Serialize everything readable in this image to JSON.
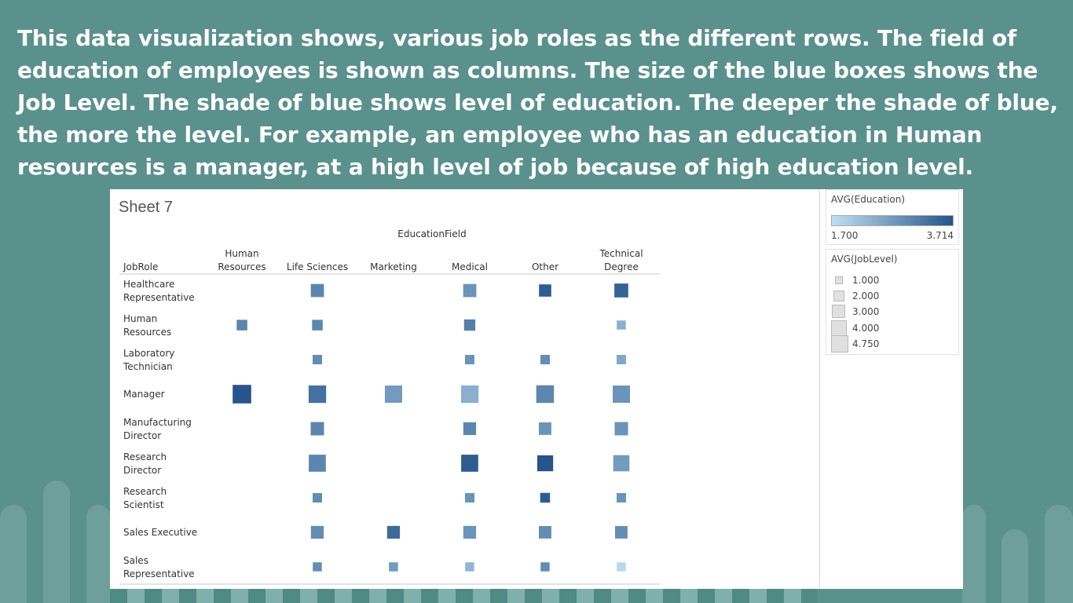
{
  "caption": "This data visualization shows, various job roles as the different rows. The field of education of employees is shown as columns. The size of the blue boxes shows the Job Level. The shade of blue shows level of education. The deeper the shade of blue, the more the level. For example, an employee who has an education in Human resources is a manager, at a high level of job because of high education level.",
  "sheet_title": "Sheet 7",
  "legend": {
    "color_title": "AVG(Education)",
    "color_min": "1.700",
    "color_max": "3.714",
    "color_min_hex": "#bfe0f3",
    "color_max_hex": "#26548a",
    "size_title": "AVG(JobLevel)",
    "size_items": [
      "1.000",
      "2.000",
      "3.000",
      "4.000",
      "4.750"
    ]
  },
  "chart_data": {
    "type": "heatmap",
    "title": "Sheet 7",
    "column_field": "EducationField",
    "row_field": "JobRole",
    "columns": [
      "Human Resources",
      "Life Sciences",
      "Marketing",
      "Medical",
      "Other",
      "Technical Degree"
    ],
    "column_labels": [
      [
        "Human",
        "Resources"
      ],
      [
        "Life Sciences"
      ],
      [
        "Marketing"
      ],
      [
        "Medical"
      ],
      [
        "Other"
      ],
      [
        "Technical",
        "Degree"
      ]
    ],
    "rows": [
      "Healthcare Representative",
      "Human Resources",
      "Laboratory Technician",
      "Manager",
      "Manufacturing Director",
      "Research Director",
      "Research Scientist",
      "Sales Executive",
      "Sales Representative"
    ],
    "row_labels": [
      [
        "Healthcare",
        "Representative"
      ],
      [
        "Human",
        "Resources"
      ],
      [
        "Laboratory",
        "Technician"
      ],
      [
        "Manager"
      ],
      [
        "Manufacturing",
        "Director"
      ],
      [
        "Research",
        "Director"
      ],
      [
        "Research",
        "Scientist"
      ],
      [
        "Sales Executive"
      ],
      [
        "Sales",
        "Representative"
      ]
    ],
    "size_measure": "AVG(JobLevel)",
    "color_measure": "AVG(Education)",
    "size_range": [
      1.0,
      4.75
    ],
    "color_range": [
      1.7,
      3.714
    ],
    "cells": [
      {
        "row": "Healthcare Representative",
        "col": "Life Sciences",
        "job_level": 2.3,
        "education": 3.0
      },
      {
        "row": "Healthcare Representative",
        "col": "Medical",
        "job_level": 2.3,
        "education": 2.8
      },
      {
        "row": "Healthcare Representative",
        "col": "Other",
        "job_level": 2.0,
        "education": 3.6
      },
      {
        "row": "Healthcare Representative",
        "col": "Technical Degree",
        "job_level": 2.6,
        "education": 3.5
      },
      {
        "row": "Human Resources",
        "col": "Human Resources",
        "job_level": 1.5,
        "education": 3.0
      },
      {
        "row": "Human Resources",
        "col": "Life Sciences",
        "job_level": 1.5,
        "education": 3.0
      },
      {
        "row": "Human Resources",
        "col": "Medical",
        "job_level": 1.7,
        "education": 3.1
      },
      {
        "row": "Human Resources",
        "col": "Technical Degree",
        "job_level": 1.1,
        "education": 2.4
      },
      {
        "row": "Laboratory Technician",
        "col": "Life Sciences",
        "job_level": 1.2,
        "education": 2.9
      },
      {
        "row": "Laboratory Technician",
        "col": "Medical",
        "job_level": 1.2,
        "education": 2.8
      },
      {
        "row": "Laboratory Technician",
        "col": "Other",
        "job_level": 1.2,
        "education": 2.9
      },
      {
        "row": "Laboratory Technician",
        "col": "Technical Degree",
        "job_level": 1.2,
        "education": 2.5
      },
      {
        "row": "Manager",
        "col": "Human Resources",
        "job_level": 4.6,
        "education": 3.7
      },
      {
        "row": "Manager",
        "col": "Life Sciences",
        "job_level": 4.1,
        "education": 3.3
      },
      {
        "row": "Manager",
        "col": "Marketing",
        "job_level": 4.0,
        "education": 2.7
      },
      {
        "row": "Manager",
        "col": "Medical",
        "job_level": 4.1,
        "education": 2.4
      },
      {
        "row": "Manager",
        "col": "Other",
        "job_level": 4.2,
        "education": 3.0
      },
      {
        "row": "Manager",
        "col": "Technical Degree",
        "job_level": 4.0,
        "education": 2.8
      },
      {
        "row": "Manufacturing Director",
        "col": "Life Sciences",
        "job_level": 2.4,
        "education": 3.0
      },
      {
        "row": "Manufacturing Director",
        "col": "Medical",
        "job_level": 2.2,
        "education": 3.0
      },
      {
        "row": "Manufacturing Director",
        "col": "Other",
        "job_level": 2.1,
        "education": 2.8
      },
      {
        "row": "Manufacturing Director",
        "col": "Technical Degree",
        "job_level": 2.4,
        "education": 2.8
      },
      {
        "row": "Research Director",
        "col": "Life Sciences",
        "job_level": 3.9,
        "education": 3.0
      },
      {
        "row": "Research Director",
        "col": "Medical",
        "job_level": 3.9,
        "education": 3.6
      },
      {
        "row": "Research Director",
        "col": "Other",
        "job_level": 3.4,
        "education": 3.7
      },
      {
        "row": "Research Director",
        "col": "Technical Degree",
        "job_level": 3.5,
        "education": 2.7
      },
      {
        "row": "Research Scientist",
        "col": "Life Sciences",
        "job_level": 1.2,
        "education": 2.9
      },
      {
        "row": "Research Scientist",
        "col": "Medical",
        "job_level": 1.2,
        "education": 2.8
      },
      {
        "row": "Research Scientist",
        "col": "Other",
        "job_level": 1.3,
        "education": 3.6
      },
      {
        "row": "Research Scientist",
        "col": "Technical Degree",
        "job_level": 1.2,
        "education": 2.8
      },
      {
        "row": "Sales Executive",
        "col": "Life Sciences",
        "job_level": 2.2,
        "education": 2.9
      },
      {
        "row": "Sales Executive",
        "col": "Marketing",
        "job_level": 2.2,
        "education": 3.4
      },
      {
        "row": "Sales Executive",
        "col": "Medical",
        "job_level": 2.2,
        "education": 2.8
      },
      {
        "row": "Sales Executive",
        "col": "Other",
        "job_level": 2.1,
        "education": 2.9
      },
      {
        "row": "Sales Executive",
        "col": "Technical Degree",
        "job_level": 2.1,
        "education": 2.9
      },
      {
        "row": "Sales Representative",
        "col": "Life Sciences",
        "job_level": 1.1,
        "education": 2.9
      },
      {
        "row": "Sales Representative",
        "col": "Marketing",
        "job_level": 1.1,
        "education": 2.7
      },
      {
        "row": "Sales Representative",
        "col": "Medical",
        "job_level": 1.1,
        "education": 2.3
      },
      {
        "row": "Sales Representative",
        "col": "Other",
        "job_level": 1.1,
        "education": 2.9
      },
      {
        "row": "Sales Representative",
        "col": "Technical Degree",
        "job_level": 1.1,
        "education": 1.8
      }
    ]
  }
}
